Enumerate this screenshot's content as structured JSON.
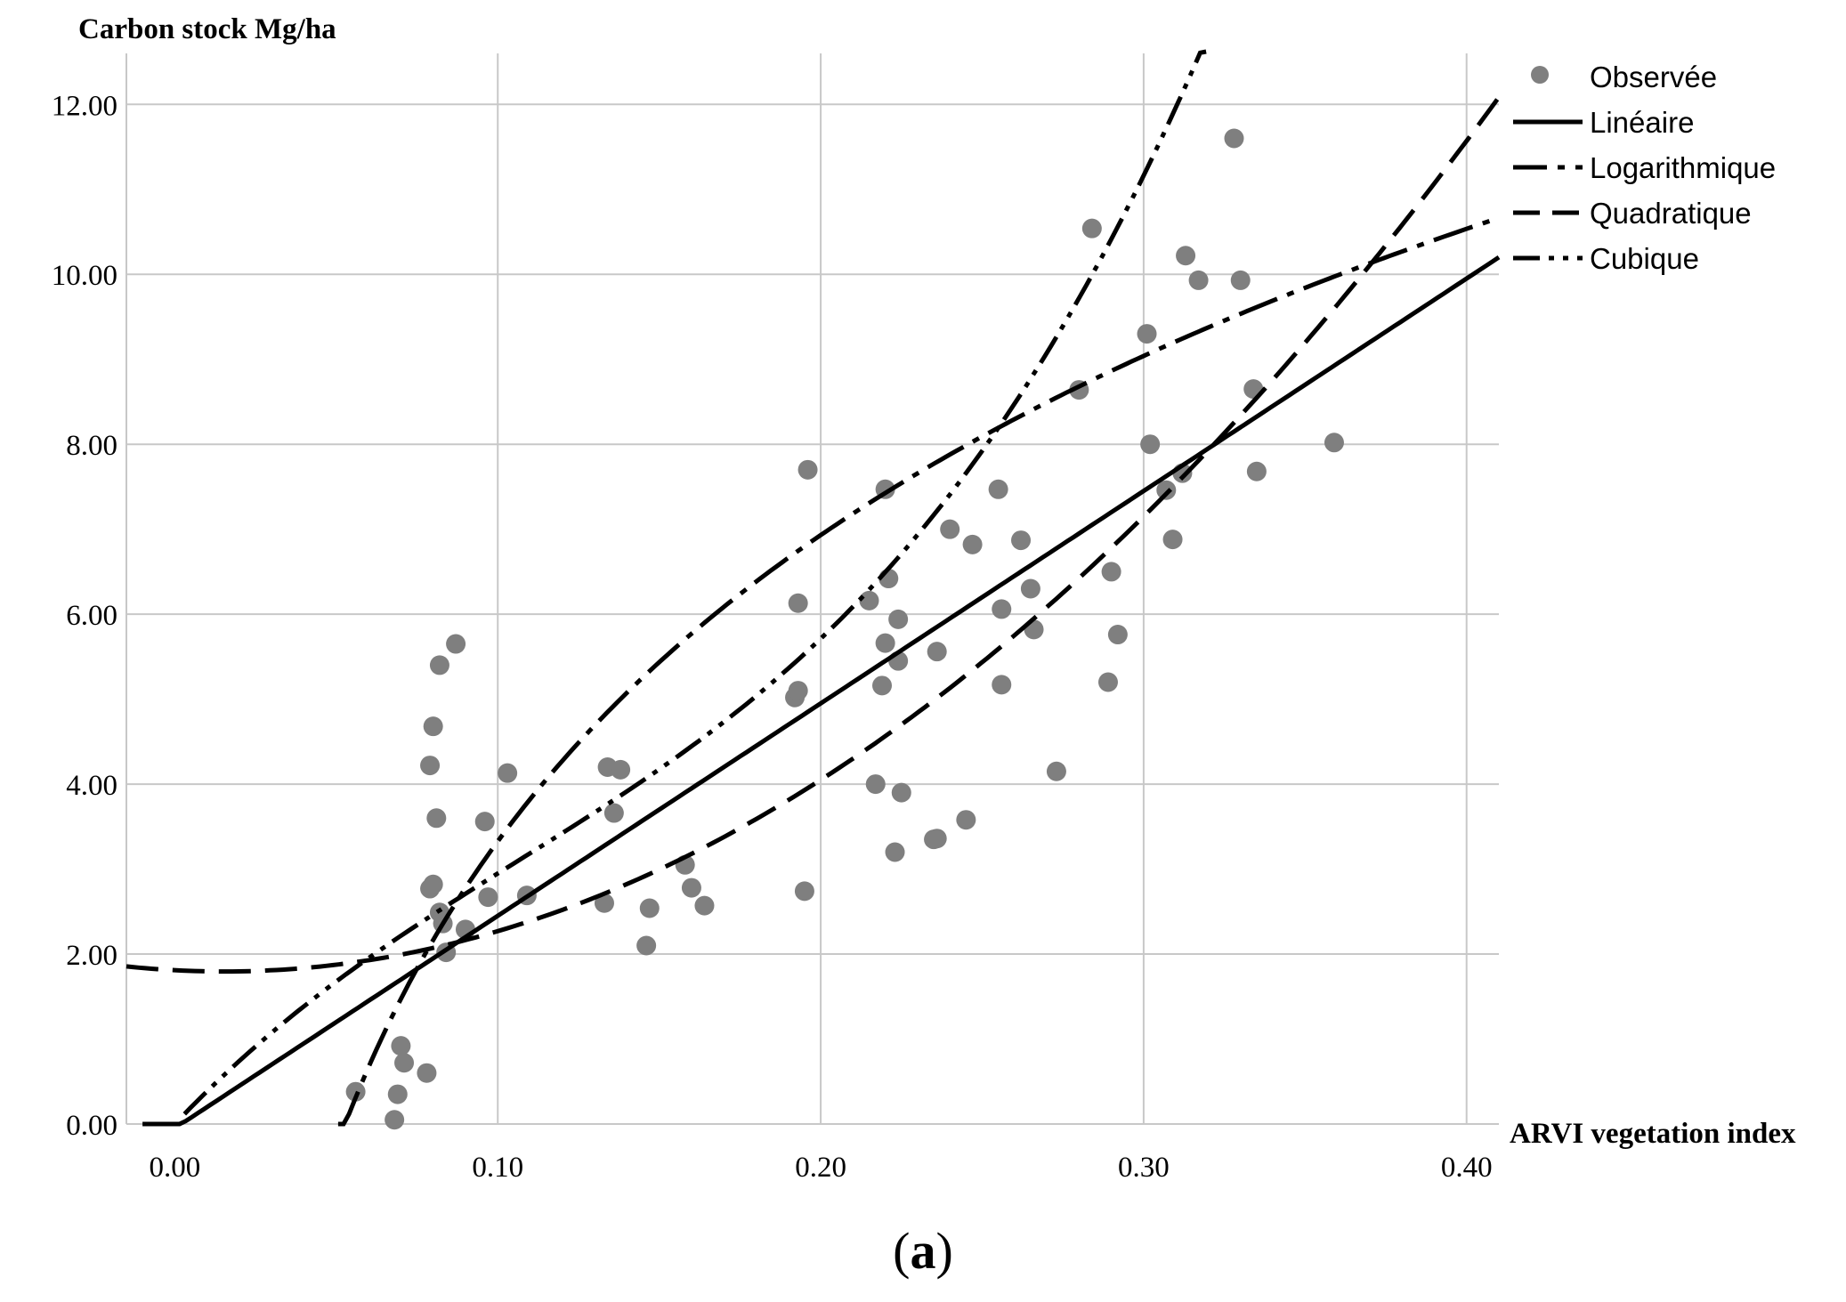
{
  "figure": {
    "caption_open": "(",
    "caption_letter": "a",
    "caption_close": ")"
  },
  "chart_data": {
    "type": "scatter",
    "xlabel": "ARVI vegetation index",
    "ylabel": "Carbon stock Mg/ha",
    "xlim": [
      -0.015,
      0.41
    ],
    "ylim": [
      0,
      12.6
    ],
    "x_ticks": [
      "0.00",
      "0.10",
      "0.20",
      "0.30",
      "0.40"
    ],
    "x_tick_values": [
      0,
      0.1,
      0.2,
      0.3,
      0.4
    ],
    "y_ticks": [
      "0.00",
      "2.00",
      "4.00",
      "6.00",
      "8.00",
      "10.00",
      "12.00"
    ],
    "y_tick_values": [
      0,
      2,
      4,
      6,
      8,
      10,
      12
    ],
    "grid": true,
    "legend_position": "top-right",
    "legend": [
      "Observée",
      "Linéaire",
      "Logarithmique",
      "Quadratique",
      "Cubique"
    ],
    "colors": {
      "points": "#7f7f7f",
      "lines": "#000000",
      "grid": "#c8c8c8"
    },
    "observed": {
      "name": "Observée",
      "x": [
        0.056,
        0.068,
        0.069,
        0.07,
        0.071,
        0.078,
        0.079,
        0.079,
        0.08,
        0.08,
        0.081,
        0.082,
        0.082,
        0.083,
        0.084,
        0.087,
        0.09,
        0.096,
        0.097,
        0.103,
        0.109,
        0.133,
        0.134,
        0.136,
        0.138,
        0.146,
        0.147,
        0.158,
        0.16,
        0.164,
        0.192,
        0.193,
        0.193,
        0.195,
        0.196,
        0.215,
        0.217,
        0.219,
        0.22,
        0.22,
        0.221,
        0.223,
        0.224,
        0.224,
        0.225,
        0.235,
        0.236,
        0.236,
        0.24,
        0.245,
        0.247,
        0.255,
        0.256,
        0.256,
        0.262,
        0.265,
        0.266,
        0.273,
        0.28,
        0.284,
        0.289,
        0.29,
        0.292,
        0.301,
        0.302,
        0.307,
        0.309,
        0.312,
        0.313,
        0.317,
        0.328,
        0.33,
        0.334,
        0.335,
        0.359
      ],
      "y": [
        0.38,
        0.05,
        0.35,
        0.92,
        0.72,
        0.6,
        2.77,
        4.22,
        4.68,
        2.82,
        3.6,
        5.4,
        2.49,
        2.36,
        2.02,
        5.65,
        2.29,
        3.56,
        2.67,
        4.13,
        2.69,
        2.6,
        4.2,
        3.66,
        4.17,
        2.1,
        2.54,
        3.05,
        2.78,
        2.57,
        5.02,
        6.13,
        5.1,
        2.74,
        7.7,
        6.16,
        4.0,
        5.16,
        7.47,
        5.66,
        6.42,
        3.2,
        5.94,
        5.45,
        3.9,
        3.35,
        5.56,
        3.36,
        7.0,
        3.58,
        6.82,
        7.47,
        6.06,
        5.17,
        6.87,
        6.3,
        5.82,
        4.15,
        8.64,
        10.54,
        5.2,
        6.5,
        5.76,
        9.3,
        8.0,
        7.46,
        6.88,
        7.66,
        10.22,
        9.93,
        11.6,
        9.93,
        8.65,
        7.68,
        8.02
      ]
    },
    "series": [
      {
        "name": "Linéaire",
        "type": "line",
        "style": "solid",
        "formula": "linear",
        "coef": [
          -0.05,
          25.0
        ],
        "x": [
          -0.01,
          0.41
        ]
      },
      {
        "name": "Logarithmique",
        "type": "line",
        "style": "dash-dot",
        "formula": "log",
        "coef": [
          15.3,
          5.2
        ],
        "x": [
          0.037,
          0.41
        ]
      },
      {
        "name": "Quadratique",
        "type": "line",
        "style": "long-dash",
        "formula": "quadratic",
        "coef": [
          1.81,
          -2.0,
          66.0
        ],
        "x": [
          -0.015,
          0.41
        ]
      },
      {
        "name": "Cubique",
        "type": "line",
        "style": "dash-dot-dot",
        "formula": "cubic",
        "coef": [
          0.0,
          40.0,
          -153.0,
          479.0
        ],
        "x": [
          0.003,
          0.41
        ]
      }
    ]
  }
}
